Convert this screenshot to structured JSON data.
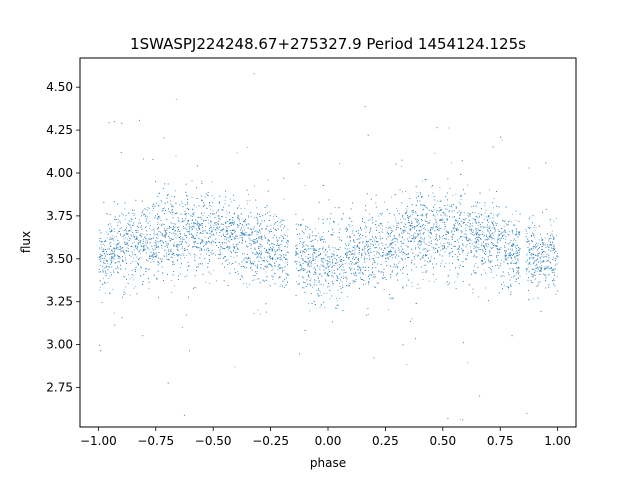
{
  "chart_data": {
    "type": "scatter",
    "title": "1SWASPJ224248.67+275327.9 Period 1454124.125s",
    "xlabel": "phase",
    "ylabel": "flux",
    "xlim": [
      -1.08,
      1.08
    ],
    "ylim": [
      2.52,
      4.67
    ],
    "x_ticks": [
      -1.0,
      -0.75,
      -0.5,
      -0.25,
      0.0,
      0.25,
      0.5,
      0.75,
      1.0
    ],
    "x_tick_labels": [
      "−1.00",
      "−0.75",
      "−0.50",
      "−0.25",
      "0.00",
      "0.25",
      "0.50",
      "0.75",
      "1.00"
    ],
    "y_ticks": [
      2.75,
      3.0,
      3.25,
      3.5,
      3.75,
      4.0,
      4.25,
      4.5
    ],
    "y_tick_labels": [
      "2.75",
      "3.00",
      "3.25",
      "3.50",
      "3.75",
      "4.00",
      "4.25",
      "4.50"
    ],
    "grid": false,
    "legend": "none",
    "marker_color": "#1f77b4",
    "series": [
      {
        "x": [
          -1.0,
          -0.9,
          -0.8,
          -0.7,
          -0.6,
          -0.5,
          -0.4,
          -0.3,
          -0.2,
          -0.1,
          0.0,
          0.1,
          0.2,
          0.3,
          0.4,
          0.5,
          0.6,
          0.7,
          0.8,
          0.9,
          1.0
        ],
        "y": [
          3.5,
          3.56,
          3.6,
          3.65,
          3.66,
          3.65,
          3.62,
          3.57,
          3.52,
          3.5,
          3.48,
          3.52,
          3.56,
          3.6,
          3.65,
          3.66,
          3.64,
          3.6,
          3.56,
          3.52,
          3.5
        ],
        "y_spread": [
          0.18,
          0.2,
          0.22,
          0.22,
          0.21,
          0.2,
          0.2,
          0.19,
          0.18,
          0.19,
          0.2,
          0.2,
          0.2,
          0.21,
          0.22,
          0.22,
          0.21,
          0.2,
          0.19,
          0.18,
          0.18
        ],
        "phase_gaps": [
          [
            -0.175,
            -0.145
          ],
          [
            0.835,
            0.86
          ]
        ]
      }
    ]
  }
}
